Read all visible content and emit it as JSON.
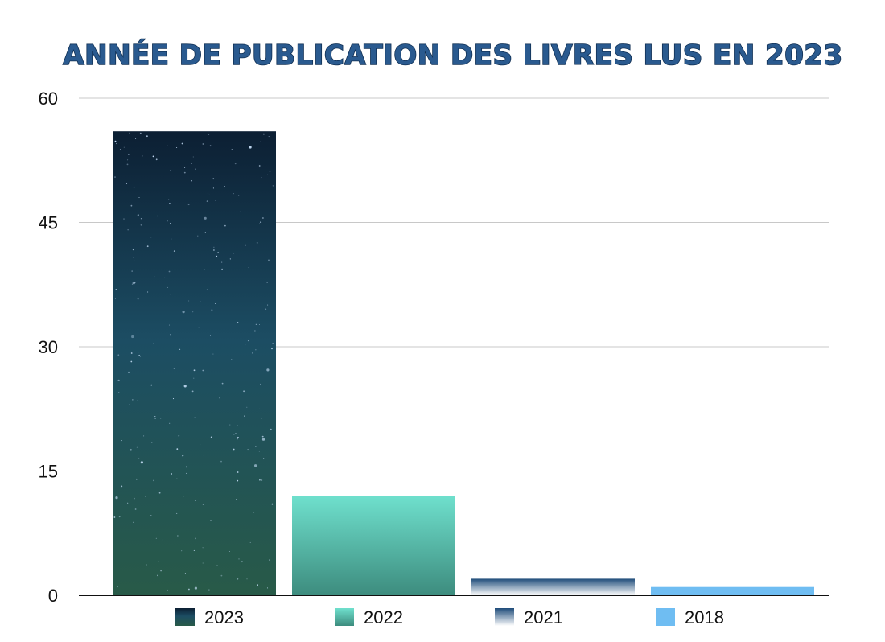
{
  "chart_data": {
    "type": "bar",
    "title": "ANNÉE DE PUBLICATION DES LIVRES LUS EN 2023",
    "xlabel": "",
    "ylabel": "",
    "ylim": [
      0,
      60
    ],
    "yticks": [
      0,
      15,
      30,
      45,
      60
    ],
    "grid": true,
    "legend_position": "bottom",
    "categories": [
      "2023",
      "2022",
      "2021",
      "2018"
    ],
    "series": [
      {
        "name": "2023",
        "values": [
          56,
          null,
          null,
          null
        ]
      },
      {
        "name": "2022",
        "values": [
          null,
          12,
          null,
          null
        ]
      },
      {
        "name": "2021",
        "values": [
          null,
          null,
          2,
          null
        ]
      },
      {
        "name": "2018",
        "values": [
          null,
          null,
          null,
          1
        ]
      }
    ],
    "colors": {
      "2023": [
        "#0c1f33",
        "#1c4d63",
        "#285a48"
      ],
      "2022": [
        "#6fe0cd",
        "#3d8c7e"
      ],
      "2021": [
        "#1f4c7a",
        "#ffffff"
      ],
      "2018": [
        "#6fbdf2"
      ]
    }
  }
}
